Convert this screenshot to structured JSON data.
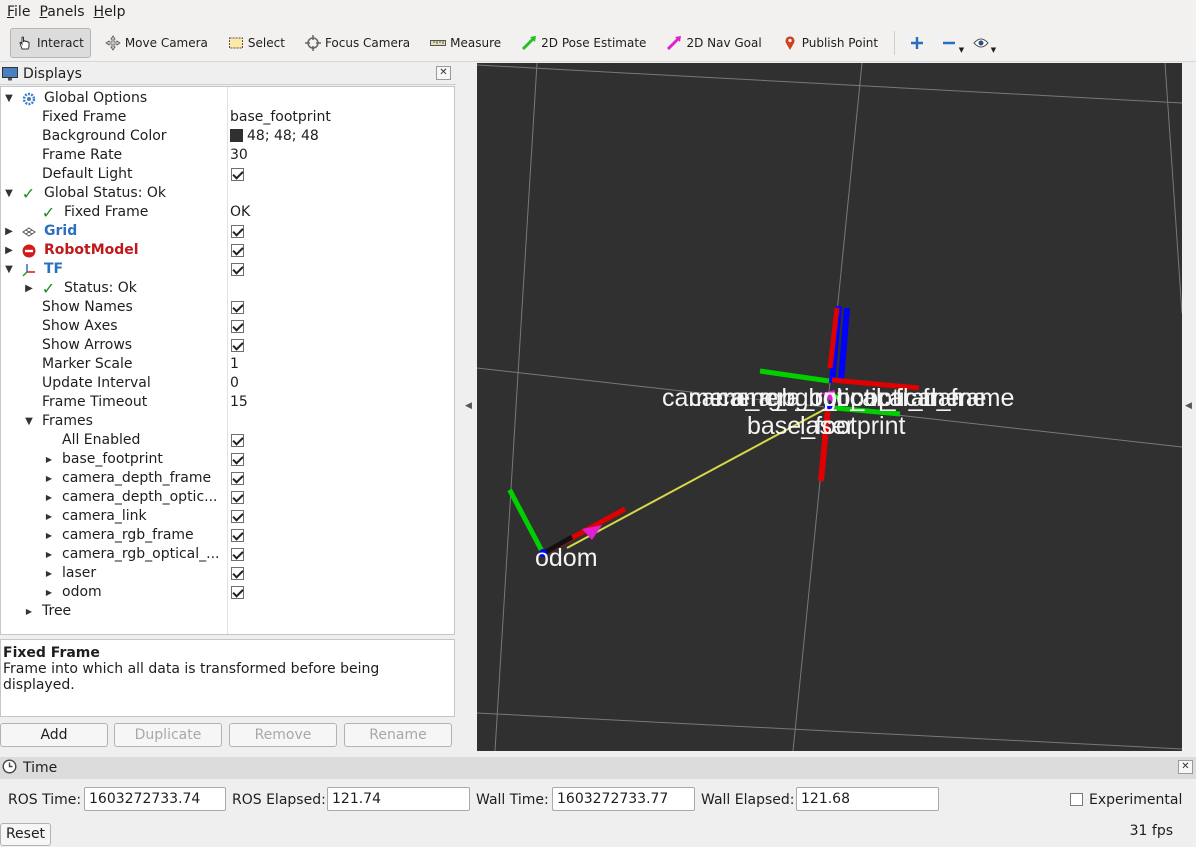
{
  "menu": {
    "items": [
      "File",
      "Panels",
      "Help"
    ]
  },
  "toolbar": {
    "tools": [
      {
        "label": "Interact",
        "icon": "hand-icon",
        "active": true
      },
      {
        "label": "Move Camera",
        "icon": "move-camera-icon"
      },
      {
        "label": "Select",
        "icon": "select-icon"
      },
      {
        "label": "Focus Camera",
        "icon": "focus-camera-icon"
      },
      {
        "label": "Measure",
        "icon": "measure-icon"
      },
      {
        "label": "2D Pose Estimate",
        "icon": "pose-arrow-icon",
        "color": "#22c022"
      },
      {
        "label": "2D Nav Goal",
        "icon": "nav-arrow-icon",
        "color": "#e020d0"
      },
      {
        "label": "Publish Point",
        "icon": "map-pin-icon",
        "color": "#d04020"
      }
    ]
  },
  "displays": {
    "title": "Displays",
    "rows": [
      {
        "name": "Global Options",
        "value": ""
      },
      {
        "name": "Fixed Frame",
        "value": "base_footprint"
      },
      {
        "name": "Background Color",
        "value": "48; 48; 48"
      },
      {
        "name": "Frame Rate",
        "value": "30"
      },
      {
        "name": "Default Light",
        "value": ""
      },
      {
        "name": "Global Status: Ok",
        "value": ""
      },
      {
        "name": "Fixed Frame",
        "value": "OK"
      },
      {
        "name": "Grid",
        "value": ""
      },
      {
        "name": "RobotModel",
        "value": ""
      },
      {
        "name": "TF",
        "value": ""
      },
      {
        "name": "Status: Ok",
        "value": ""
      },
      {
        "name": "Show Names",
        "value": ""
      },
      {
        "name": "Show Axes",
        "value": ""
      },
      {
        "name": "Show Arrows",
        "value": ""
      },
      {
        "name": "Marker Scale",
        "value": "1"
      },
      {
        "name": "Update Interval",
        "value": "0"
      },
      {
        "name": "Frame Timeout",
        "value": "15"
      },
      {
        "name": "Frames",
        "value": ""
      },
      {
        "name": "All Enabled",
        "value": ""
      },
      {
        "name": "base_footprint",
        "value": ""
      },
      {
        "name": "camera_depth_frame",
        "value": ""
      },
      {
        "name": "camera_depth_optic...",
        "value": ""
      },
      {
        "name": "camera_link",
        "value": ""
      },
      {
        "name": "camera_rgb_frame",
        "value": ""
      },
      {
        "name": "camera_rgb_optical_...",
        "value": ""
      },
      {
        "name": "laser",
        "value": ""
      },
      {
        "name": "odom",
        "value": ""
      },
      {
        "name": "Tree",
        "value": ""
      }
    ],
    "description": {
      "title": "Fixed Frame",
      "text": "Frame into which all data is transformed before being displayed."
    },
    "buttons": {
      "add": "Add",
      "duplicate": "Duplicate",
      "remove": "Remove",
      "rename": "Rename"
    }
  },
  "view3d": {
    "labels": {
      "camera_frames": "camera_rgb_optical_frame",
      "base_footprint": "base_footprint",
      "laser": "laser",
      "odom": "odom"
    },
    "background": "#303030"
  },
  "time": {
    "title": "Time",
    "ros_time_label": "ROS Time:",
    "ros_time": "1603272733.74",
    "ros_elapsed_label": "ROS Elapsed:",
    "ros_elapsed": "121.74",
    "wall_time_label": "Wall Time:",
    "wall_time": "1603272733.77",
    "wall_elapsed_label": "Wall Elapsed:",
    "wall_elapsed": "121.68",
    "experimental_label": "Experimental",
    "reset_label": "Reset",
    "fps": "31 fps"
  }
}
